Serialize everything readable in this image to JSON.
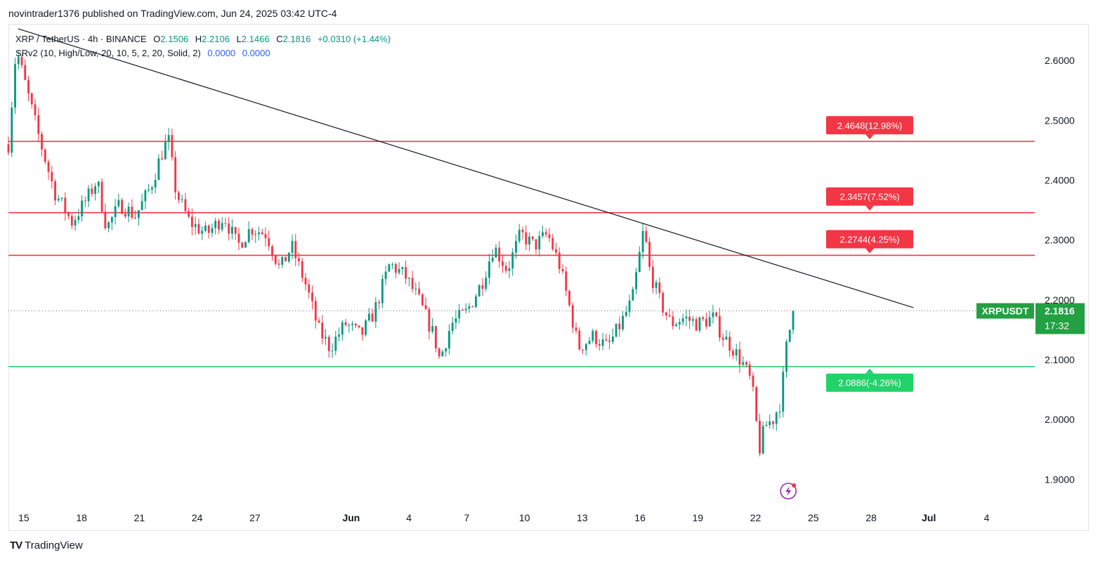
{
  "header": {
    "published_line": "novintrader1376 published on TradingView.com, Jun 24, 2025 03:42 UTC-4"
  },
  "legend": {
    "symbol_line": "XRP / TetherUS · 4h · BINANCE",
    "open_label": "O",
    "open": "2.1506",
    "high_label": "H",
    "high": "2.2106",
    "low_label": "L",
    "low": "2.1466",
    "close_label": "C",
    "close": "2.1816",
    "change": "+0.0310 (+1.44%)",
    "indicator": "SRv2 (10, High/Low, 20, 10, 5, 2, 20, Solid, 2)",
    "indicator_v1": "0.0000",
    "indicator_v2": "0.0000"
  },
  "footer": {
    "brand": "TradingView",
    "logo_text": "TV"
  },
  "chart_data": {
    "type": "candlestick",
    "symbol": "XRPUSDT",
    "interval": "4h",
    "ylim": [
      1.85,
      2.66
    ],
    "y_ticks": [
      "2.6000",
      "2.5000",
      "2.4000",
      "2.3000",
      "2.2000",
      "2.1000",
      "2.0000",
      "1.9000"
    ],
    "x_ticks": [
      "15",
      "18",
      "21",
      "24",
      "27",
      "Jun",
      "4",
      "7",
      "10",
      "13",
      "16",
      "19",
      "22",
      "25",
      "28",
      "Jul",
      "4"
    ],
    "x_tick_days": [
      15,
      18,
      21,
      24,
      27,
      32,
      35,
      38,
      41,
      44,
      47,
      50,
      53,
      56,
      59,
      62,
      65
    ],
    "x_range_days": [
      14.2,
      67.5
    ],
    "horizontal_levels": [
      {
        "price": 2.4648,
        "label": "2.4648(12.98%)",
        "color": "#f23645",
        "type": "resistance"
      },
      {
        "price": 2.3457,
        "label": "2.3457(7.52%)",
        "color": "#f23645",
        "type": "resistance"
      },
      {
        "price": 2.2744,
        "label": "2.2744(4.25%)",
        "color": "#f23645",
        "type": "resistance"
      },
      {
        "price": 2.0886,
        "label": "2.0886(-4.26%)",
        "color": "#22d36a",
        "type": "support"
      }
    ],
    "trendline": {
      "from": {
        "day": 14.7,
        "price": 2.653
      },
      "to": {
        "day": 61.2,
        "price": 2.187
      },
      "color": "#131722"
    },
    "last_price": {
      "symbol_label": "XRPUSDT",
      "price": "2.1816",
      "countdown": "17:32",
      "value": 2.1816,
      "color": "#22a042"
    },
    "anchors": [
      [
        14.2,
        2.46
      ],
      [
        14.6,
        2.62
      ],
      [
        15.0,
        2.57
      ],
      [
        15.8,
        2.47
      ],
      [
        16.6,
        2.38
      ],
      [
        17.5,
        2.33
      ],
      [
        18.3,
        2.37
      ],
      [
        18.8,
        2.4
      ],
      [
        19.3,
        2.32
      ],
      [
        20.0,
        2.36
      ],
      [
        20.8,
        2.34
      ],
      [
        21.6,
        2.39
      ],
      [
        22.1,
        2.44
      ],
      [
        22.5,
        2.47
      ],
      [
        22.9,
        2.38
      ],
      [
        23.6,
        2.33
      ],
      [
        24.5,
        2.31
      ],
      [
        25.4,
        2.34
      ],
      [
        26.1,
        2.29
      ],
      [
        26.8,
        2.32
      ],
      [
        27.6,
        2.31
      ],
      [
        28.3,
        2.25
      ],
      [
        28.9,
        2.29
      ],
      [
        29.7,
        2.22
      ],
      [
        30.3,
        2.15
      ],
      [
        30.9,
        2.12
      ],
      [
        31.7,
        2.16
      ],
      [
        32.5,
        2.14
      ],
      [
        33.2,
        2.18
      ],
      [
        34.0,
        2.26
      ],
      [
        34.8,
        2.24
      ],
      [
        35.5,
        2.2
      ],
      [
        36.3,
        2.14
      ],
      [
        36.6,
        2.1
      ],
      [
        37.2,
        2.16
      ],
      [
        38.0,
        2.18
      ],
      [
        38.8,
        2.23
      ],
      [
        39.4,
        2.29
      ],
      [
        40.1,
        2.25
      ],
      [
        40.8,
        2.31
      ],
      [
        41.5,
        2.29
      ],
      [
        42.2,
        2.31
      ],
      [
        42.8,
        2.26
      ],
      [
        43.4,
        2.18
      ],
      [
        43.8,
        2.12
      ],
      [
        44.6,
        2.14
      ],
      [
        45.3,
        2.12
      ],
      [
        46.0,
        2.16
      ],
      [
        46.6,
        2.2
      ],
      [
        47.2,
        2.32
      ],
      [
        47.5,
        2.25
      ],
      [
        48.0,
        2.2
      ],
      [
        48.6,
        2.16
      ],
      [
        49.3,
        2.17
      ],
      [
        50.0,
        2.16
      ],
      [
        50.8,
        2.17
      ],
      [
        51.3,
        2.14
      ],
      [
        51.8,
        2.12
      ],
      [
        52.4,
        2.09
      ],
      [
        52.8,
        2.06
      ],
      [
        53.2,
        1.95
      ],
      [
        53.5,
        1.99
      ],
      [
        53.9,
        2.0
      ],
      [
        54.3,
        2.03
      ],
      [
        54.6,
        2.12
      ],
      [
        54.95,
        2.1816
      ]
    ],
    "candle_count": 236,
    "up_color": "#089981",
    "down_color": "#f23645"
  }
}
